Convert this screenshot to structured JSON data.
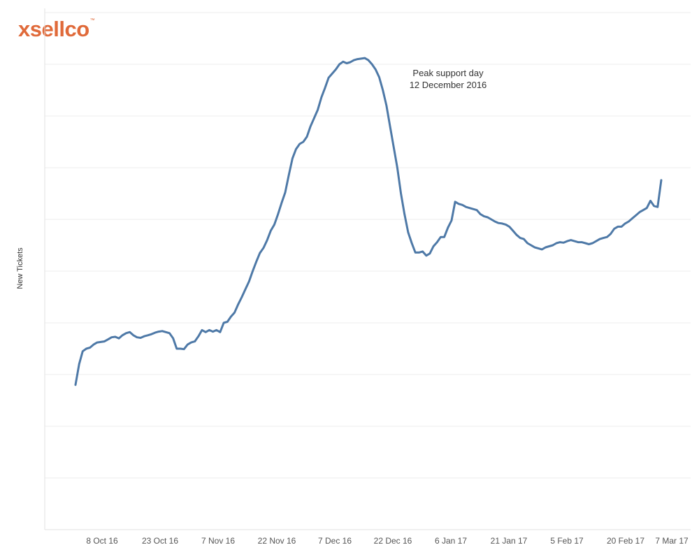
{
  "brand": {
    "logo_text": "xsellco",
    "logo_mark": "™",
    "color": "#e06a3a"
  },
  "chart_data": {
    "type": "line",
    "ylabel": "New Tickets",
    "xlabel": "",
    "grid": true,
    "line_color": "#4e79a7",
    "x_ticks": [
      "8 Oct 16",
      "23 Oct 16",
      "7 Nov 16",
      "22 Nov 16",
      "7 Dec 16",
      "22 Dec 16",
      "6 Jan 17",
      "21 Jan 17",
      "5 Feb 17",
      "20 Feb 17",
      "7 Mar 17"
    ],
    "annotation": {
      "line1": "Peak support day",
      "line2": "12 December 2016"
    },
    "series": [
      {
        "values": [
          2.8,
          3.2,
          3.45,
          3.5,
          3.52,
          3.58,
          3.62,
          3.63,
          3.64,
          3.68,
          3.72,
          3.73,
          3.7,
          3.76,
          3.8,
          3.82,
          3.76,
          3.72,
          3.71,
          3.74,
          3.76,
          3.78,
          3.81,
          3.83,
          3.84,
          3.82,
          3.8,
          3.7,
          3.5,
          3.5,
          3.49,
          3.58,
          3.62,
          3.64,
          3.74,
          3.86,
          3.82,
          3.86,
          3.83,
          3.86,
          3.82,
          4.0,
          4.02,
          4.12,
          4.2,
          4.36,
          4.5,
          4.65,
          4.8,
          5.0,
          5.18,
          5.35,
          5.45,
          5.6,
          5.78,
          5.9,
          6.1,
          6.32,
          6.52,
          6.86,
          7.18,
          7.36,
          7.46,
          7.5,
          7.6,
          7.8,
          7.96,
          8.12,
          8.36,
          8.54,
          8.74,
          8.82,
          8.9,
          9.0,
          9.05,
          9.02,
          9.04,
          9.08,
          9.1,
          9.11,
          9.12,
          9.08,
          9.0,
          8.9,
          8.75,
          8.5,
          8.2,
          7.8,
          7.4,
          7.0,
          6.5,
          6.1,
          5.75,
          5.54,
          5.36,
          5.36,
          5.38,
          5.3,
          5.34,
          5.48,
          5.56,
          5.66,
          5.66,
          5.84,
          5.98,
          6.34,
          6.3,
          6.28,
          6.24,
          6.22,
          6.2,
          6.18,
          6.1,
          6.06,
          6.04,
          6.0,
          5.96,
          5.93,
          5.92,
          5.9,
          5.86,
          5.78,
          5.7,
          5.64,
          5.62,
          5.54,
          5.5,
          5.46,
          5.44,
          5.42,
          5.46,
          5.48,
          5.5,
          5.54,
          5.56,
          5.55,
          5.58,
          5.6,
          5.58,
          5.56,
          5.56,
          5.54,
          5.52,
          5.54,
          5.58,
          5.62,
          5.64,
          5.66,
          5.72,
          5.82,
          5.86,
          5.86,
          5.92,
          5.96,
          6.02,
          6.08,
          6.14,
          6.18,
          6.22,
          6.36,
          6.26,
          6.24,
          6.76
        ]
      }
    ]
  }
}
